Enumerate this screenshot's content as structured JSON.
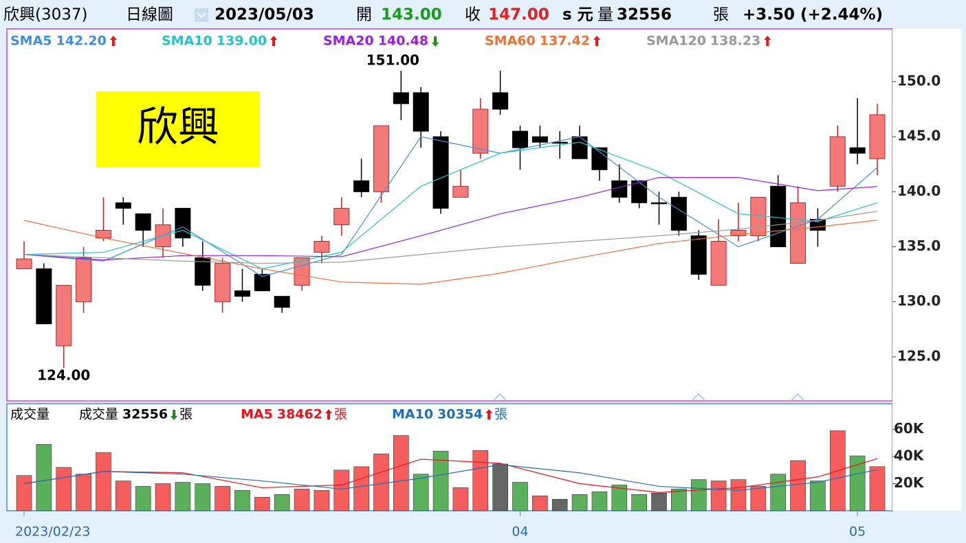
{
  "header": {
    "name": "欣興(3037)",
    "period": "日線圖",
    "date": "2023/05/03",
    "open_label": "開",
    "open": "143.00",
    "close_label": "收",
    "close": "147.00",
    "unit": "s 元",
    "volume_label": "量",
    "volume": "32556",
    "volume_unit": "張",
    "change": "+3.50 (+2.44%)"
  },
  "chart_data": [
    {
      "type": "candlestick",
      "title": "欣興",
      "categories": [
        "2023/02/23",
        null,
        null,
        null,
        null,
        null,
        null,
        null,
        null,
        null,
        null,
        null,
        null,
        null,
        null,
        null,
        null,
        null,
        null,
        null,
        null,
        null,
        null,
        null,
        null,
        "04",
        null,
        null,
        null,
        null,
        null,
        null,
        null,
        null,
        null,
        null,
        null,
        null,
        null,
        null,
        null,
        null,
        "05",
        null
      ],
      "open": [
        133,
        133,
        126,
        130,
        135.8,
        139,
        138,
        135,
        138.5,
        134,
        130,
        131,
        132.5,
        130.5,
        131.5,
        134.5,
        137,
        141,
        140,
        149,
        149,
        145,
        139.5,
        143.5,
        149,
        145.5,
        145,
        144.5,
        145,
        144,
        141,
        141,
        139,
        139.5,
        136,
        131.5,
        136,
        136,
        140.5,
        133.5,
        137.5,
        140.5,
        144,
        143
      ],
      "high": [
        135.5,
        133.5,
        131.5,
        135,
        139.5,
        139.5,
        138,
        138.5,
        138.5,
        135.5,
        134,
        133,
        133,
        130.5,
        134,
        136,
        139.5,
        143,
        146,
        151,
        149.5,
        145.5,
        142,
        148.5,
        151,
        146,
        146,
        145.5,
        146,
        144,
        142.5,
        141,
        140,
        140,
        136.5,
        137.5,
        139,
        139.5,
        141.5,
        140.5,
        138.5,
        146,
        148.5,
        148
      ],
      "low": [
        133,
        128,
        124,
        129,
        135.5,
        137,
        135,
        134,
        135,
        131,
        129,
        130,
        131,
        129,
        131,
        133.5,
        136,
        139.5,
        139,
        146.5,
        144,
        138,
        139.5,
        143,
        147,
        142,
        144,
        143,
        143,
        141,
        139,
        138.5,
        137,
        136,
        132,
        131.5,
        135.5,
        135.5,
        135,
        133.5,
        135,
        140,
        142.5,
        141.5
      ],
      "close": [
        133.9,
        128,
        131.5,
        134,
        136.5,
        138.5,
        136.5,
        137,
        135.8,
        131.5,
        133.5,
        130.5,
        131,
        129.5,
        134,
        135.5,
        138.5,
        140,
        146,
        148,
        145.5,
        138.5,
        140.5,
        147.5,
        147.5,
        144,
        144.5,
        144.5,
        143,
        142,
        139.5,
        139,
        139,
        136.5,
        132.5,
        135.5,
        136.5,
        139.5,
        135,
        139,
        136.5,
        145,
        143.5,
        147
      ],
      "up_color": "#f47a7a",
      "down_color": "#000000",
      "ylim": [
        121,
        154.8
      ],
      "yticks": [
        {
          "value": 125,
          "label": "125.0"
        },
        {
          "value": 130,
          "label": "130.0"
        },
        {
          "value": 135,
          "label": "135.0"
        },
        {
          "value": 140,
          "label": "140.0"
        },
        {
          "value": 145,
          "label": "145.0"
        },
        {
          "value": 150,
          "label": "150.0"
        }
      ],
      "annotations": [
        {
          "text": "151.00",
          "value": 151
        },
        {
          "text": "124.00",
          "value": 124
        }
      ],
      "series": [
        {
          "name": "SMA5",
          "legend_value": "142.20",
          "trend": "up",
          "color": "#3f8fd8",
          "x": [
            0,
            4,
            8,
            12,
            16,
            20,
            24,
            28,
            32,
            36,
            40,
            43
          ],
          "values": [
            134.3,
            133.7,
            136.8,
            132.3,
            134.3,
            145,
            143.5,
            145,
            139.5,
            135,
            137.5,
            142.2
          ]
        },
        {
          "name": "SMA10",
          "legend_value": "139.00",
          "trend": "up",
          "color": "#22c4c8",
          "x": [
            0,
            4,
            8,
            12,
            16,
            20,
            24,
            28,
            32,
            36,
            40,
            43
          ],
          "values": [
            134.3,
            134.5,
            136.5,
            133,
            134.5,
            140.5,
            143.5,
            144.5,
            141.8,
            138,
            137.3,
            139
          ]
        },
        {
          "name": "SMA20",
          "legend_value": "140.48",
          "trend": "down",
          "color": "#9b1fdc",
          "x": [
            0,
            4,
            8,
            12,
            16,
            20,
            24,
            28,
            32,
            36,
            40,
            43
          ],
          "values": [
            134.3,
            133.8,
            134.2,
            134.2,
            134.1,
            136,
            138,
            139.5,
            141.3,
            141.3,
            140.1,
            140.48
          ]
        },
        {
          "name": "SMA60",
          "legend_value": "137.42",
          "trend": "up",
          "color": "#f07030",
          "x": [
            0,
            4,
            8,
            12,
            16,
            20,
            24,
            28,
            32,
            36,
            40,
            43
          ],
          "values": [
            137.4,
            135.8,
            134.4,
            133,
            131.8,
            131.6,
            132.6,
            134,
            135.3,
            136.1,
            136.8,
            137.42
          ]
        },
        {
          "name": "SMA120",
          "legend_value": "138.23",
          "trend": "up",
          "color": "#999999",
          "x": [
            0,
            4,
            8,
            12,
            16,
            20,
            24,
            28,
            32,
            36,
            40,
            43
          ],
          "values": [
            134.3,
            134,
            133.7,
            133.5,
            133.6,
            134.3,
            135,
            135.5,
            136,
            136.6,
            137.4,
            138.23
          ]
        }
      ]
    },
    {
      "type": "bar",
      "title": "成交量",
      "legend_prefix": "成交量",
      "legend_value": "32556",
      "trend": "down",
      "unit": "張",
      "values": [
        26000,
        49000,
        32000,
        27000,
        43000,
        22000,
        18000,
        20000,
        21000,
        20000,
        18000,
        15000,
        10000,
        12000,
        16000,
        15000,
        30000,
        32500,
        42000,
        55500,
        27000,
        44000,
        17000,
        44500,
        34500,
        21000,
        11000,
        8500,
        12000,
        14000,
        19000,
        12000,
        13000,
        16000,
        23000,
        22000,
        23000,
        18000,
        27000,
        37000,
        22000,
        59000,
        40500,
        32556
      ],
      "colors": [
        "#f65e5e",
        "#5cb05c",
        "#f65e5e",
        "#f65e5e",
        "#f65e5e",
        "#f65e5e",
        "#5cb05c",
        "#f65e5e",
        "#5cb05c",
        "#5cb05c",
        "#f65e5e",
        "#5cb05c",
        "#f65e5e",
        "#5cb05c",
        "#f65e5e",
        "#f65e5e",
        "#f65e5e",
        "#f65e5e",
        "#f65e5e",
        "#f65e5e",
        "#5cb05c",
        "#5cb05c",
        "#f65e5e",
        "#f65e5e",
        "#666666",
        "#5cb05c",
        "#f65e5e",
        "#666666",
        "#5cb05c",
        "#5cb05c",
        "#5cb05c",
        "#5cb05c",
        "#666666",
        "#5cb05c",
        "#5cb05c",
        "#f65e5e",
        "#f65e5e",
        "#f65e5e",
        "#5cb05c",
        "#f65e5e",
        "#5cb05c",
        "#f65e5e",
        "#5cb05c",
        "#f65e5e"
      ],
      "ylim": [
        0,
        78000
      ],
      "yticks": [
        {
          "value": 20000,
          "label": "20K"
        },
        {
          "value": 40000,
          "label": "40K"
        },
        {
          "value": 60000,
          "label": "60K"
        }
      ],
      "series": [
        {
          "name": "MA5",
          "legend_value": "38462",
          "trend": "up",
          "unit": "張",
          "color": "#e8141c",
          "x": [
            0,
            4,
            8,
            12,
            16,
            20,
            24,
            28,
            32,
            36,
            40,
            43
          ],
          "values": [
            20000,
            29000,
            28000,
            17000,
            19000,
            38000,
            35000,
            20000,
            13500,
            17000,
            25000,
            38462
          ]
        },
        {
          "name": "MA10",
          "legend_value": "30354",
          "trend": "up",
          "unit": "張",
          "color": "#1f6fb8",
          "x": [
            0,
            4,
            8,
            12,
            16,
            20,
            24,
            28,
            32,
            36,
            40,
            43
          ],
          "values": [
            20000,
            29000,
            27000,
            22000,
            16000,
            24000,
            34000,
            28000,
            18000,
            15000,
            21000,
            30354
          ]
        }
      ]
    }
  ]
}
